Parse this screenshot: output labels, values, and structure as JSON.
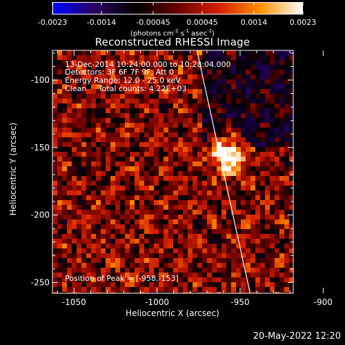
{
  "chart_data": {
    "type": "heatmap",
    "title": "Reconstructed RHESSI Image",
    "xlabel": "Heliocentric X (arcsec)",
    "ylabel": "Heliocentric Y (arcsec)",
    "xlim": [
      -1063,
      -918
    ],
    "ylim": [
      -258,
      -78
    ],
    "xticks": [
      "-1050",
      "-1000",
      "-950",
      "-900"
    ],
    "xtick_values": [
      -1050,
      -1000,
      -950,
      -900
    ],
    "yticks": [
      "-100",
      "-150",
      "-200",
      "-250"
    ],
    "ytick_values": [
      -100,
      -150,
      -200,
      -250
    ],
    "colorbar": {
      "ticks": [
        "-0.0023",
        "-0.0014",
        "-0.00045",
        "0.00045",
        "0.0014",
        "0.0023"
      ],
      "tick_values": [
        -0.0023,
        -0.0014,
        -0.00045,
        0.00045,
        0.0014,
        0.0023
      ],
      "range": [
        -0.0023,
        0.0023
      ],
      "unit_text": "(photons cm",
      "unit_sup1": "-2",
      "unit_mid": " s",
      "unit_sup2": "-1",
      "unit_mid2": " asec",
      "unit_sup3": "-2",
      "unit_end": ")"
    },
    "annotations": {
      "time_range": "13-Dec-2014 10:24:00.000 to 10:28:04.000",
      "detectors": "Detectors: 3F 6F 7F 9F, Att 0",
      "energy": "Energy Range: 12.0 - 25.0 keV",
      "clean": "Clean     Total counts: 4.22E+03",
      "peak": "Position of Peak = [-958,-153]"
    },
    "peak": {
      "x": -958,
      "y": -153
    },
    "limb_line": [
      {
        "x": -976,
        "y": -78
      },
      {
        "x": -944,
        "y": -258
      }
    ],
    "colormap": [
      "#0000ff",
      "#2a0060",
      "#000000",
      "#6a0000",
      "#d42000",
      "#ff9000",
      "#ffffff"
    ]
  },
  "footer": {
    "date": "20-May-2022 12:20"
  }
}
